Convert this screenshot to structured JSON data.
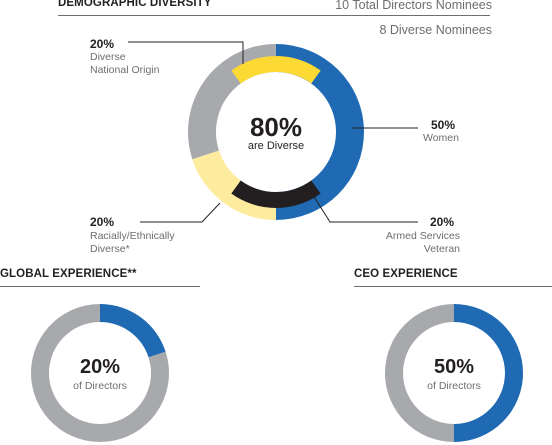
{
  "demographic": {
    "title": "DEMOGRAPHIC DIVERSITY",
    "total_directors": "10 Total Directors Nominees",
    "diverse_nominees": "8 Diverse Nominees",
    "center_value": "80%",
    "center_label": "are Diverse",
    "callouts": {
      "national_origin": {
        "pct": "20%",
        "line1": "Diverse",
        "line2": "National Origin"
      },
      "women": {
        "pct": "50%",
        "line1": "Women"
      },
      "racial": {
        "pct": "20%",
        "line1": "Racially/Ethnically",
        "line2": "Diverse*"
      },
      "veteran": {
        "pct": "20%",
        "line1": "Armed Services",
        "line2": "Veteran"
      }
    }
  },
  "global": {
    "title": "GLOBAL EXPERIENCE**",
    "value": "20%",
    "label": "of Directors"
  },
  "ceo": {
    "title": "CEO EXPERIENCE",
    "value": "50%",
    "label": "of Directors"
  },
  "colors": {
    "blue": "#1f6ab3",
    "gray": "#a7a9ac",
    "yellow": "#fcd933",
    "light_yellow": "#fdeb9e",
    "black": "#231f20"
  },
  "chart_data": [
    {
      "type": "pie",
      "title": "DEMOGRAPHIC DIVERSITY",
      "style": "donut",
      "series": [
        {
          "name": "Women",
          "values": [
            50
          ]
        },
        {
          "name": "Racially/Ethnically Diverse*",
          "values": [
            20
          ]
        },
        {
          "name": "",
          "values": [
            20
          ]
        },
        {
          "name": "Diverse National Origin",
          "values": [
            20
          ]
        },
        {
          "name": "Armed Services Veteran",
          "values": [
            20
          ]
        }
      ],
      "center": "80% are Diverse"
    },
    {
      "type": "pie",
      "title": "GLOBAL EXPERIENCE**",
      "style": "donut",
      "values": [
        20,
        80
      ],
      "center": "20% of Directors"
    },
    {
      "type": "pie",
      "title": "CEO EXPERIENCE",
      "style": "donut",
      "values": [
        50,
        50
      ],
      "center": "50% of Directors"
    }
  ]
}
